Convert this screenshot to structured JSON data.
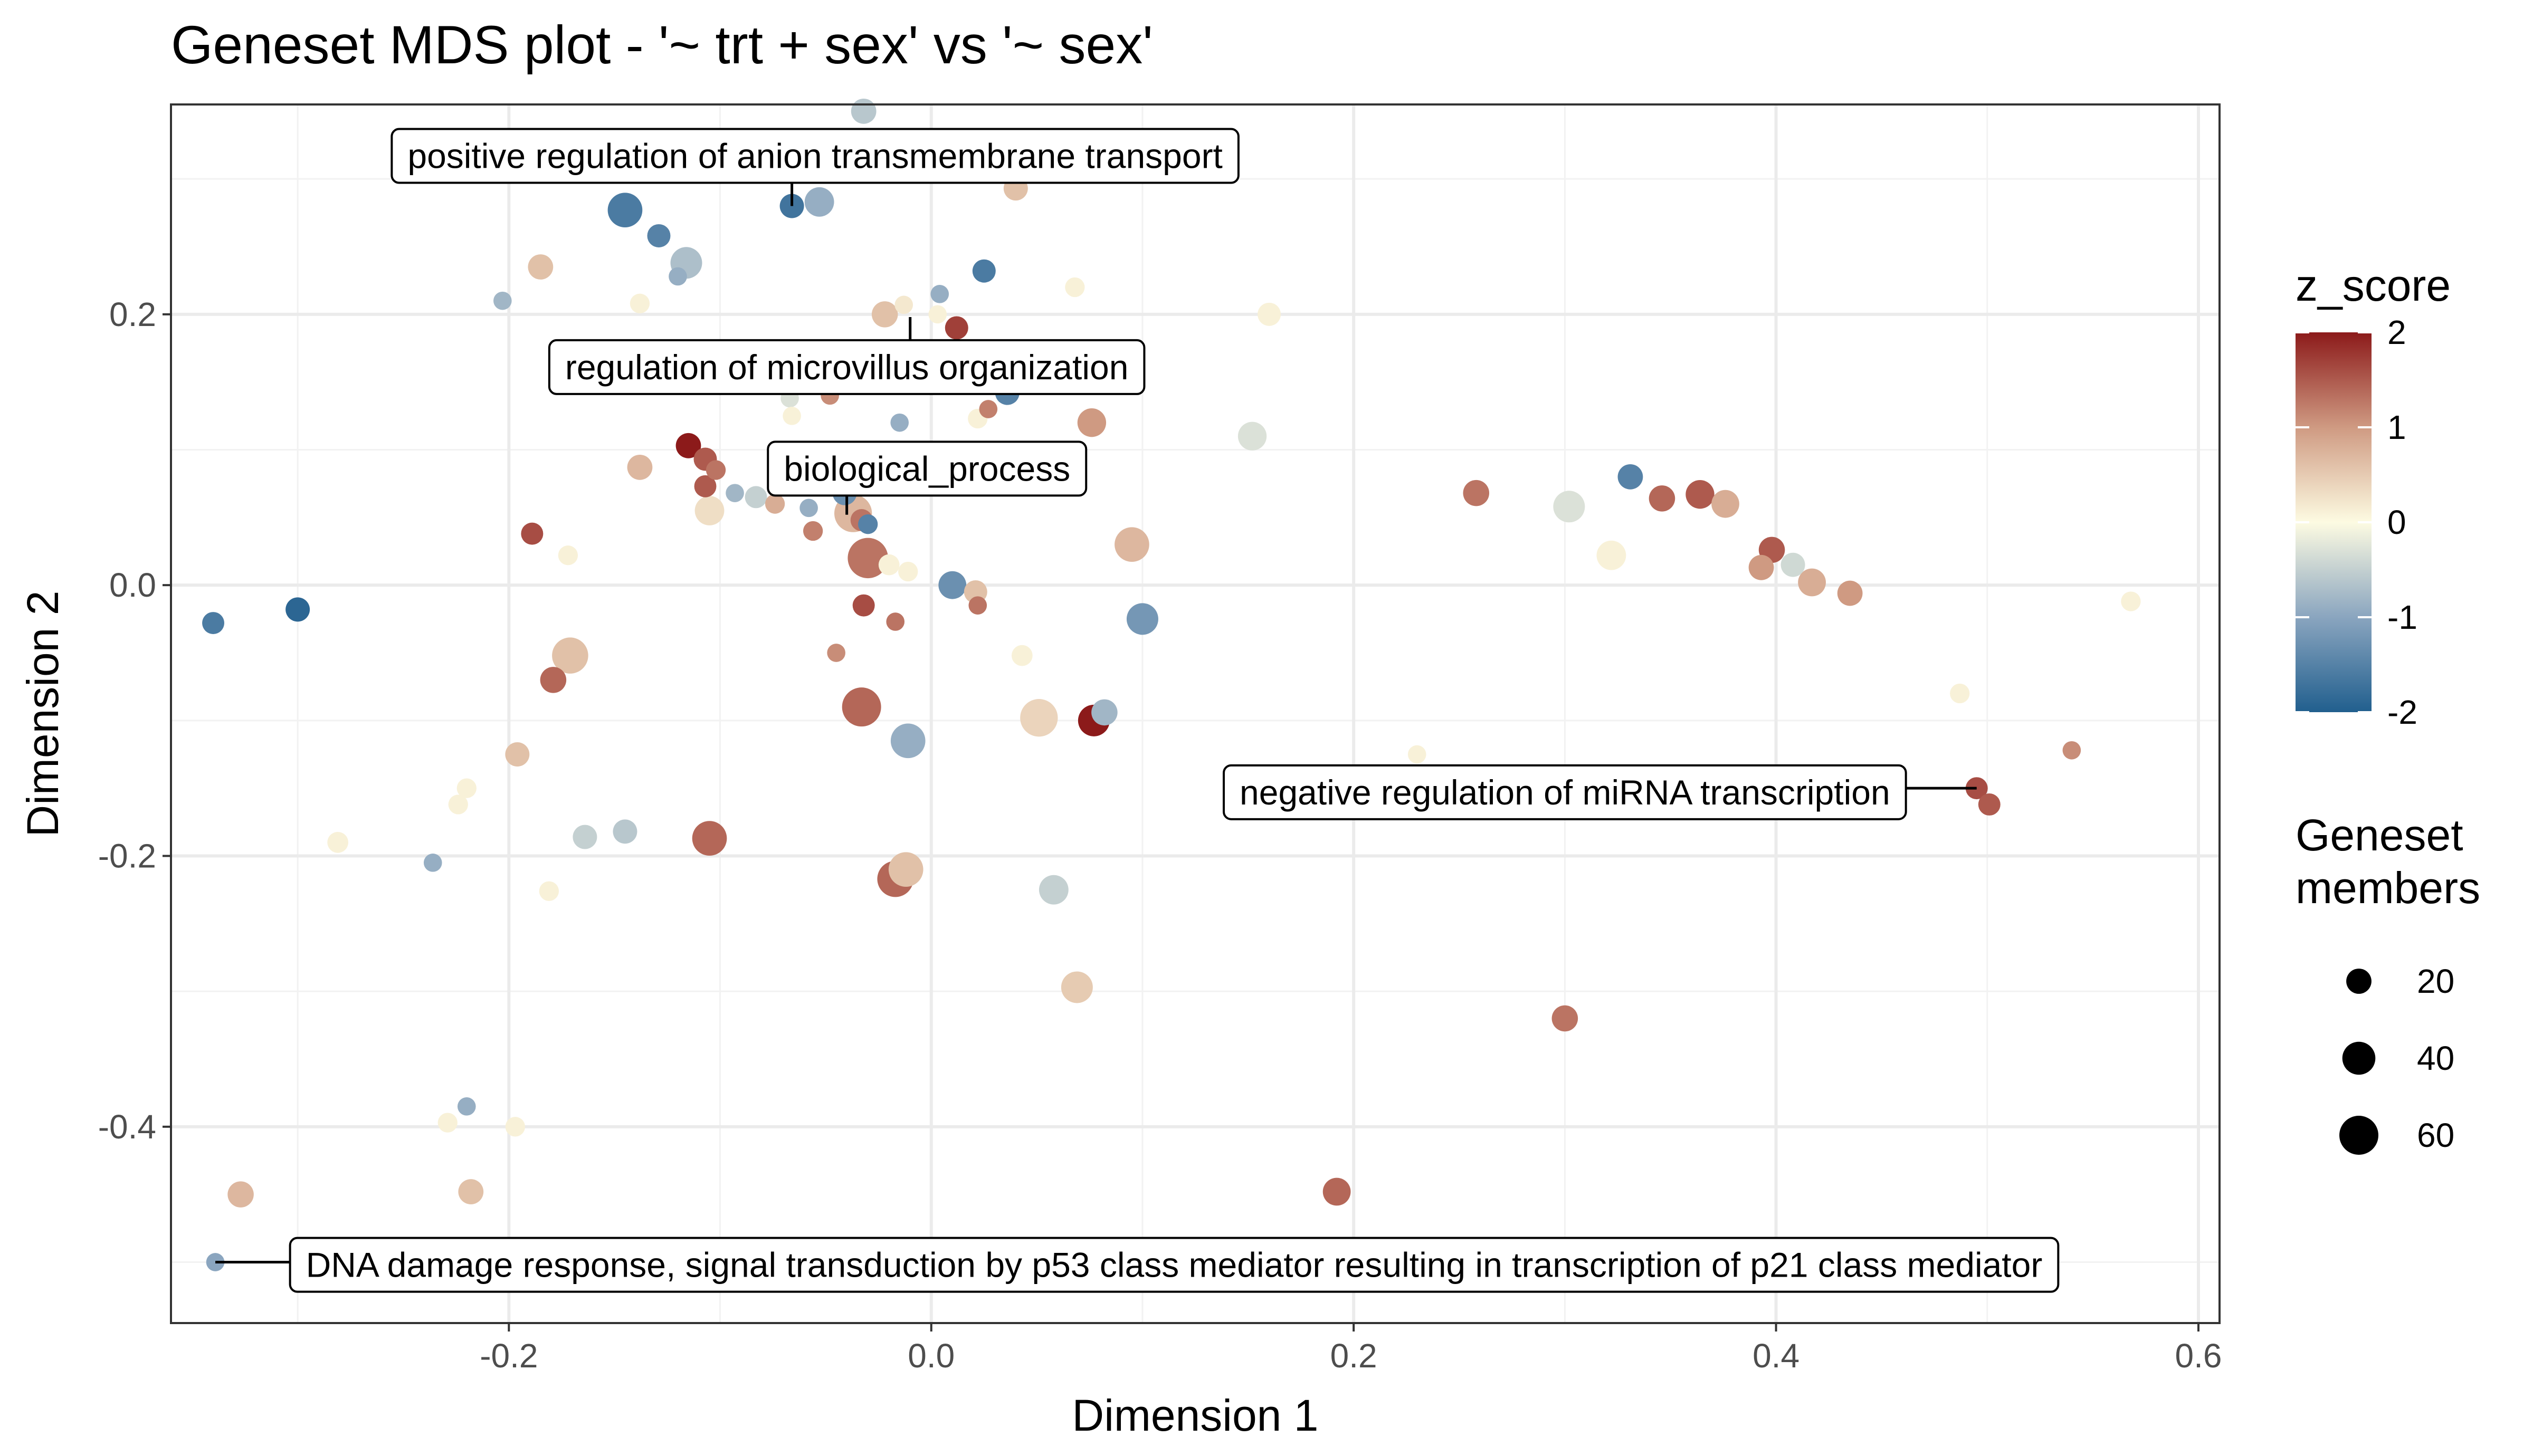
{
  "chart_data": {
    "type": "scatter",
    "title": "Geneset MDS plot - '~ trt + sex' vs '~ sex'",
    "xlabel": "Dimension 1",
    "ylabel": "Dimension 2",
    "xlim": [
      -0.36,
      0.61
    ],
    "ylim": [
      -0.545,
      0.355
    ],
    "x_ticks": [
      -0.2,
      0.0,
      0.2,
      0.4,
      0.6
    ],
    "x_tick_labels": [
      "-0.2",
      "0.0",
      "0.2",
      "0.4",
      "0.6"
    ],
    "y_ticks": [
      -0.4,
      -0.2,
      0.0,
      0.2
    ],
    "y_tick_labels": [
      "-0.4",
      "-0.2",
      "0.0",
      "0.2"
    ],
    "grid": true,
    "legend_position": "right",
    "color_legend": {
      "title": "z_score",
      "breaks": [
        2,
        1,
        0,
        -1,
        -2
      ],
      "labels": [
        "2",
        "1",
        "0",
        "-1",
        "-2"
      ],
      "gradient": [
        {
          "z": -2,
          "color": "#215f8e"
        },
        {
          "z": -1,
          "color": "#8aa5bf"
        },
        {
          "z": 0,
          "color": "#fdfbe2"
        },
        {
          "z": 1,
          "color": "#cf9a82"
        },
        {
          "z": 2,
          "color": "#8c1a1a"
        }
      ]
    },
    "size_legend": {
      "title_lines": [
        "Geneset",
        "members"
      ],
      "breaks": [
        20,
        40,
        60
      ],
      "labels": [
        "20",
        "40",
        "60"
      ]
    },
    "points": [
      {
        "x": -0.032,
        "y": 0.35,
        "z": -0.6,
        "n": 20
      },
      {
        "x": -0.129,
        "y": 0.305,
        "z": -0.5,
        "n": 14
      },
      {
        "x": 0.04,
        "y": 0.293,
        "z": 0.6,
        "n": 18
      },
      {
        "x": -0.145,
        "y": 0.277,
        "z": -1.6,
        "n": 45
      },
      {
        "x": -0.053,
        "y": 0.283,
        "z": -0.9,
        "n": 30
      },
      {
        "x": -0.066,
        "y": 0.28,
        "z": -1.7,
        "n": 18
      },
      {
        "x": -0.129,
        "y": 0.258,
        "z": -1.5,
        "n": 16
      },
      {
        "x": -0.116,
        "y": 0.238,
        "z": -0.7,
        "n": 36
      },
      {
        "x": -0.12,
        "y": 0.228,
        "z": -0.9,
        "n": 8
      },
      {
        "x": -0.185,
        "y": 0.235,
        "z": 0.6,
        "n": 20
      },
      {
        "x": 0.025,
        "y": 0.232,
        "z": -1.6,
        "n": 16
      },
      {
        "x": -0.203,
        "y": 0.21,
        "z": -0.8,
        "n": 8
      },
      {
        "x": -0.138,
        "y": 0.208,
        "z": 0.1,
        "n": 10
      },
      {
        "x": 0.004,
        "y": 0.215,
        "z": -0.9,
        "n": 8
      },
      {
        "x": 0.068,
        "y": 0.22,
        "z": 0.1,
        "n": 10
      },
      {
        "x": -0.022,
        "y": 0.2,
        "z": 0.6,
        "n": 22
      },
      {
        "x": -0.013,
        "y": 0.207,
        "z": 0.2,
        "n": 8
      },
      {
        "x": 0.003,
        "y": 0.2,
        "z": 0.1,
        "n": 8
      },
      {
        "x": 0.012,
        "y": 0.19,
        "z": 1.7,
        "n": 16
      },
      {
        "x": 0.16,
        "y": 0.2,
        "z": 0.1,
        "n": 16
      },
      {
        "x": 0.036,
        "y": 0.142,
        "z": -1.5,
        "n": 18
      },
      {
        "x": -0.048,
        "y": 0.14,
        "z": 1.1,
        "n": 8
      },
      {
        "x": -0.067,
        "y": 0.138,
        "z": -0.3,
        "n": 8
      },
      {
        "x": 0.027,
        "y": 0.13,
        "z": 1.2,
        "n": 8
      },
      {
        "x": -0.066,
        "y": 0.125,
        "z": 0.1,
        "n": 8
      },
      {
        "x": 0.022,
        "y": 0.123,
        "z": 0.1,
        "n": 10
      },
      {
        "x": -0.015,
        "y": 0.12,
        "z": -0.9,
        "n": 8
      },
      {
        "x": 0.076,
        "y": 0.12,
        "z": 1.0,
        "n": 28
      },
      {
        "x": 0.152,
        "y": 0.11,
        "z": -0.3,
        "n": 28
      },
      {
        "x": -0.115,
        "y": 0.103,
        "z": 2.0,
        "n": 20
      },
      {
        "x": -0.107,
        "y": 0.093,
        "z": 1.5,
        "n": 16
      },
      {
        "x": -0.102,
        "y": 0.085,
        "z": 1.3,
        "n": 10
      },
      {
        "x": -0.138,
        "y": 0.087,
        "z": 0.7,
        "n": 20
      },
      {
        "x": -0.107,
        "y": 0.073,
        "z": 1.5,
        "n": 14
      },
      {
        "x": -0.093,
        "y": 0.068,
        "z": -0.8,
        "n": 8
      },
      {
        "x": -0.083,
        "y": 0.065,
        "z": -0.5,
        "n": 14
      },
      {
        "x": -0.041,
        "y": 0.068,
        "z": -1.3,
        "n": 18
      },
      {
        "x": -0.074,
        "y": 0.06,
        "z": 0.8,
        "n": 10
      },
      {
        "x": -0.105,
        "y": 0.055,
        "z": 0.3,
        "n": 30
      },
      {
        "x": -0.058,
        "y": 0.057,
        "z": -0.9,
        "n": 8
      },
      {
        "x": -0.037,
        "y": 0.053,
        "z": 0.7,
        "n": 55
      },
      {
        "x": -0.033,
        "y": 0.048,
        "z": 1.3,
        "n": 14
      },
      {
        "x": -0.056,
        "y": 0.04,
        "z": 1.2,
        "n": 10
      },
      {
        "x": -0.03,
        "y": 0.045,
        "z": -1.5,
        "n": 10
      },
      {
        "x": -0.189,
        "y": 0.038,
        "z": 1.6,
        "n": 14
      },
      {
        "x": 0.095,
        "y": 0.03,
        "z": 0.7,
        "n": 45
      },
      {
        "x": -0.172,
        "y": 0.022,
        "z": 0.1,
        "n": 10
      },
      {
        "x": -0.03,
        "y": 0.02,
        "z": 1.3,
        "n": 65
      },
      {
        "x": -0.02,
        "y": 0.015,
        "z": 0.1,
        "n": 12
      },
      {
        "x": -0.011,
        "y": 0.01,
        "z": 0.1,
        "n": 10
      },
      {
        "x": 0.01,
        "y": 0.0,
        "z": -1.3,
        "n": 26
      },
      {
        "x": 0.021,
        "y": -0.005,
        "z": 0.6,
        "n": 16
      },
      {
        "x": -0.032,
        "y": -0.015,
        "z": 1.6,
        "n": 14
      },
      {
        "x": 0.022,
        "y": -0.015,
        "z": 1.3,
        "n": 8
      },
      {
        "x": -0.017,
        "y": -0.027,
        "z": 1.3,
        "n": 8
      },
      {
        "x": 0.1,
        "y": -0.025,
        "z": -1.2,
        "n": 36
      },
      {
        "x": -0.34,
        "y": -0.028,
        "z": -1.6,
        "n": 14
      },
      {
        "x": -0.3,
        "y": -0.018,
        "z": -1.9,
        "n": 18
      },
      {
        "x": -0.045,
        "y": -0.05,
        "z": 1.1,
        "n": 8
      },
      {
        "x": 0.043,
        "y": -0.052,
        "z": 0.1,
        "n": 12
      },
      {
        "x": -0.171,
        "y": -0.052,
        "z": 0.6,
        "n": 50
      },
      {
        "x": -0.179,
        "y": -0.07,
        "z": 1.4,
        "n": 22
      },
      {
        "x": -0.033,
        "y": -0.09,
        "z": 1.4,
        "n": 60
      },
      {
        "x": 0.051,
        "y": -0.098,
        "z": 0.4,
        "n": 55
      },
      {
        "x": 0.077,
        "y": -0.1,
        "z": 2.0,
        "n": 36
      },
      {
        "x": 0.082,
        "y": -0.094,
        "z": -0.8,
        "n": 22
      },
      {
        "x": -0.011,
        "y": -0.115,
        "z": -0.9,
        "n": 45
      },
      {
        "x": 0.23,
        "y": -0.125,
        "z": 0.1,
        "n": 8
      },
      {
        "x": 0.487,
        "y": -0.08,
        "z": 0.1,
        "n": 10
      },
      {
        "x": 0.54,
        "y": -0.122,
        "z": 1.1,
        "n": 8
      },
      {
        "x": 0.495,
        "y": -0.15,
        "z": 1.6,
        "n": 14
      },
      {
        "x": 0.501,
        "y": -0.162,
        "z": 1.5,
        "n": 14
      },
      {
        "x": -0.196,
        "y": -0.125,
        "z": 0.6,
        "n": 18
      },
      {
        "x": -0.22,
        "y": -0.15,
        "z": 0.1,
        "n": 10
      },
      {
        "x": -0.224,
        "y": -0.162,
        "z": 0.1,
        "n": 10
      },
      {
        "x": -0.281,
        "y": -0.19,
        "z": 0.1,
        "n": 12
      },
      {
        "x": -0.164,
        "y": -0.186,
        "z": -0.5,
        "n": 18
      },
      {
        "x": -0.145,
        "y": -0.182,
        "z": -0.6,
        "n": 18
      },
      {
        "x": -0.105,
        "y": -0.187,
        "z": 1.4,
        "n": 45
      },
      {
        "x": -0.236,
        "y": -0.205,
        "z": -0.9,
        "n": 8
      },
      {
        "x": -0.012,
        "y": -0.21,
        "z": 0.6,
        "n": 45
      },
      {
        "x": -0.017,
        "y": -0.217,
        "z": 1.4,
        "n": 50
      },
      {
        "x": 0.058,
        "y": -0.225,
        "z": -0.5,
        "n": 30
      },
      {
        "x": -0.181,
        "y": -0.226,
        "z": 0.1,
        "n": 10
      },
      {
        "x": 0.069,
        "y": -0.297,
        "z": 0.5,
        "n": 36
      },
      {
        "x": 0.3,
        "y": -0.32,
        "z": 1.3,
        "n": 22
      },
      {
        "x": -0.22,
        "y": -0.385,
        "z": -0.9,
        "n": 8
      },
      {
        "x": -0.229,
        "y": -0.397,
        "z": 0.1,
        "n": 10
      },
      {
        "x": -0.197,
        "y": -0.4,
        "z": 0.1,
        "n": 10
      },
      {
        "x": -0.327,
        "y": -0.45,
        "z": 0.7,
        "n": 22
      },
      {
        "x": -0.218,
        "y": -0.448,
        "z": 0.6,
        "n": 20
      },
      {
        "x": 0.192,
        "y": -0.448,
        "z": 1.4,
        "n": 26
      },
      {
        "x": -0.339,
        "y": -0.5,
        "z": -1.0,
        "n": 8
      },
      {
        "x": 0.258,
        "y": 0.068,
        "z": 1.3,
        "n": 22
      },
      {
        "x": 0.302,
        "y": 0.058,
        "z": -0.3,
        "n": 36
      },
      {
        "x": 0.331,
        "y": 0.08,
        "z": -1.5,
        "n": 20
      },
      {
        "x": 0.346,
        "y": 0.064,
        "z": 1.4,
        "n": 22
      },
      {
        "x": 0.364,
        "y": 0.067,
        "z": 1.5,
        "n": 28
      },
      {
        "x": 0.376,
        "y": 0.06,
        "z": 0.8,
        "n": 26
      },
      {
        "x": 0.322,
        "y": 0.022,
        "z": 0.1,
        "n": 30
      },
      {
        "x": 0.398,
        "y": 0.026,
        "z": 1.5,
        "n": 22
      },
      {
        "x": 0.408,
        "y": 0.015,
        "z": -0.4,
        "n": 18
      },
      {
        "x": 0.393,
        "y": 0.013,
        "z": 1.0,
        "n": 20
      },
      {
        "x": 0.417,
        "y": 0.002,
        "z": 0.8,
        "n": 26
      },
      {
        "x": 0.435,
        "y": -0.006,
        "z": 1.0,
        "n": 20
      },
      {
        "x": 0.568,
        "y": -0.012,
        "z": 0.1,
        "n": 10
      }
    ],
    "annotations": [
      {
        "text": "positive regulation of anion transmembrane transport",
        "x": -0.055,
        "y": 0.317,
        "point_x": -0.066,
        "point_y": 0.28
      },
      {
        "text": "regulation of microvillus organization",
        "x": -0.04,
        "y": 0.161,
        "point_x": -0.01,
        "point_y": 0.198
      },
      {
        "text": "biological_process",
        "x": -0.002,
        "y": 0.086,
        "point_x": -0.04,
        "point_y": 0.052
      },
      {
        "text": "negative regulation of miRNA transcription",
        "x": 0.3,
        "y": -0.153,
        "point_x": 0.495,
        "point_y": -0.15
      },
      {
        "text": "DNA damage response, signal transduction by p53 class mediator resulting in transcription of p21 class mediator",
        "x": 0.115,
        "y": -0.502,
        "point_x": -0.339,
        "point_y": -0.5
      }
    ]
  }
}
